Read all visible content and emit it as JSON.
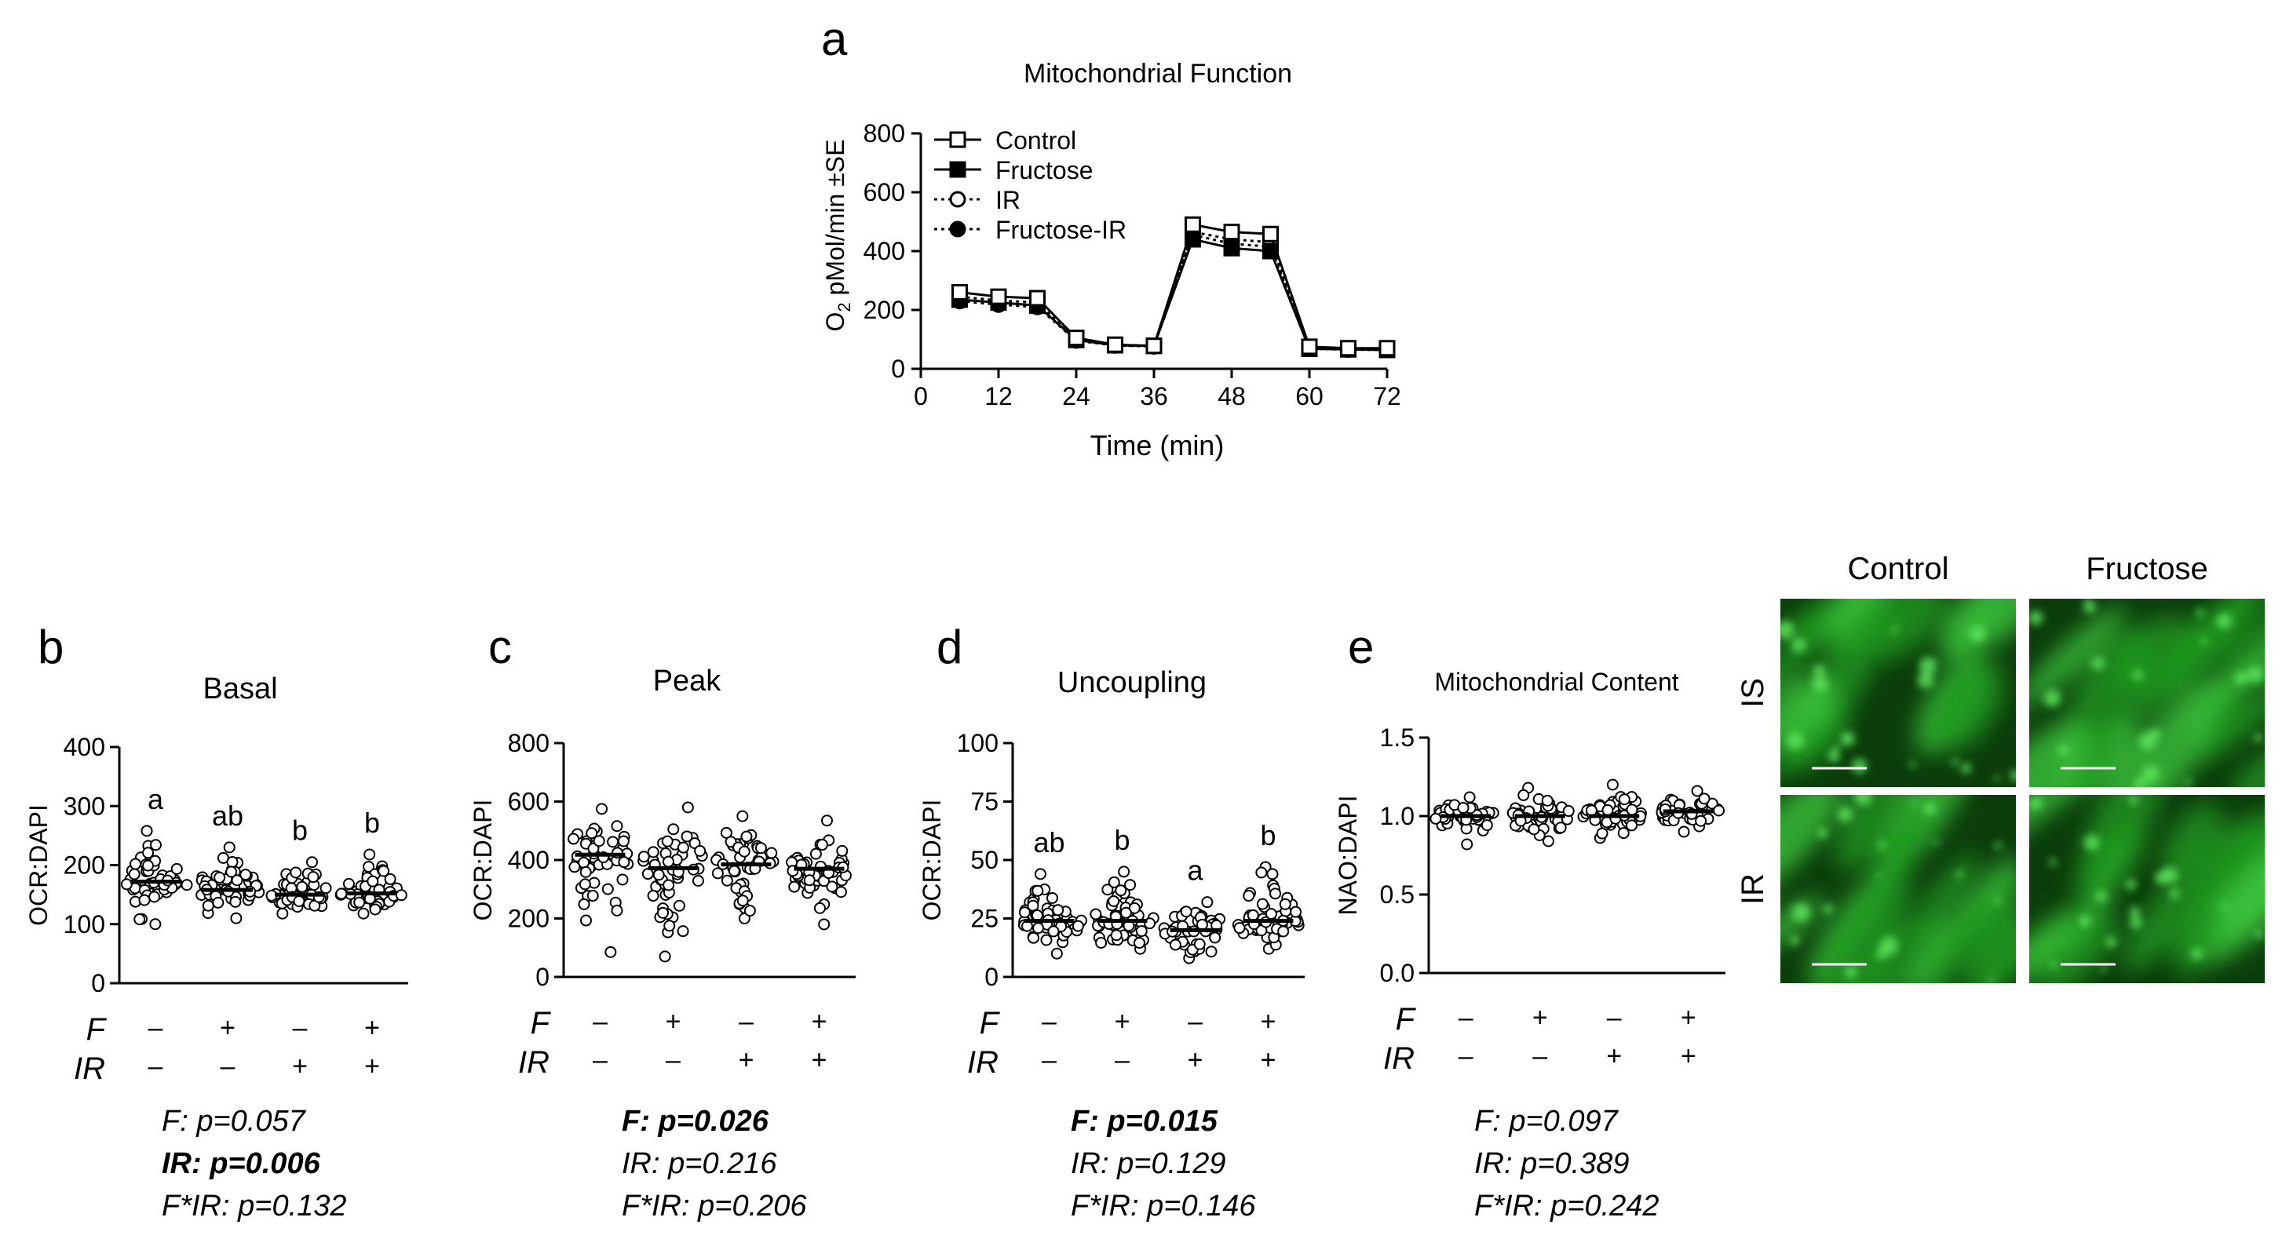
{
  "panel_a": {
    "letter": "a",
    "chart_data": {
      "type": "line",
      "title": "Mitochondrial Function",
      "xlabel": "Time (min)",
      "ylabel_main": "O",
      "ylabel_sub": "2",
      "ylabel_rest": " pMol/min ±SE",
      "x": [
        6,
        12,
        18,
        24,
        30,
        36,
        42,
        48,
        54,
        60,
        66,
        72
      ],
      "xlim": [
        0,
        72
      ],
      "ylim": [
        0,
        800
      ],
      "xticks": [
        "0",
        "12",
        "24",
        "36",
        "48",
        "60",
        "72"
      ],
      "yticks": [
        "0",
        "200",
        "400",
        "600",
        "800"
      ],
      "series": [
        {
          "name": "Control",
          "marker": "open-square",
          "line": "solid",
          "values": [
            260,
            245,
            240,
            105,
            82,
            78,
            490,
            465,
            458,
            75,
            70,
            70
          ]
        },
        {
          "name": "Fructose",
          "marker": "filled-square",
          "line": "solid",
          "values": [
            235,
            225,
            215,
            98,
            80,
            78,
            440,
            410,
            400,
            68,
            66,
            64
          ]
        },
        {
          "name": "IR",
          "marker": "open-circle",
          "line": "dotted",
          "values": [
            245,
            232,
            225,
            100,
            80,
            77,
            465,
            440,
            430,
            70,
            67,
            66
          ]
        },
        {
          "name": "Fructose-IR",
          "marker": "filled-circle",
          "line": "dotted",
          "values": [
            230,
            218,
            210,
            96,
            79,
            76,
            455,
            425,
            415,
            68,
            65,
            64
          ]
        }
      ]
    }
  },
  "dot_panels": [
    {
      "letter": "b",
      "title": "Basal",
      "ylabel": "OCR:DAPI",
      "yticks": [
        "0",
        "100",
        "200",
        "300",
        "400"
      ],
      "ylim": [
        0,
        400
      ],
      "chart_data": {
        "type": "scatter",
        "categories": [
          "F− IR−",
          "F+ IR−",
          "F− IR+",
          "F+ IR+"
        ],
        "medians": [
          172,
          158,
          150,
          152
        ],
        "spread": [
          [
            100,
            258
          ],
          [
            110,
            230
          ],
          [
            118,
            205
          ],
          [
            118,
            218
          ]
        ],
        "letters": [
          "a",
          "ab",
          "b",
          "b"
        ]
      },
      "factors": {
        "F_label": "F",
        "IR_label": "IR",
        "F": [
          "–",
          "+",
          "–",
          "+"
        ],
        "IR": [
          "–",
          "–",
          "+",
          "+"
        ]
      },
      "stats": [
        {
          "text": "F: p=0.057",
          "bold": false
        },
        {
          "text": "IR: p=0.006",
          "bold": true
        },
        {
          "text": "F*IR: p=0.132",
          "bold": false
        }
      ]
    },
    {
      "letter": "c",
      "title": "Peak",
      "ylabel": "OCR:DAPI",
      "yticks": [
        "0",
        "200",
        "400",
        "600",
        "800"
      ],
      "ylim": [
        0,
        800
      ],
      "chart_data": {
        "type": "scatter",
        "categories": [
          "F− IR−",
          "F+ IR−",
          "F− IR+",
          "F+ IR+"
        ],
        "medians": [
          418,
          372,
          385,
          370
        ],
        "spread": [
          [
            85,
            575
          ],
          [
            70,
            580
          ],
          [
            200,
            550
          ],
          [
            180,
            535
          ]
        ],
        "letters": [
          "",
          "",
          "",
          ""
        ]
      },
      "factors": {
        "F_label": "F",
        "IR_label": "IR",
        "F": [
          "–",
          "+",
          "–",
          "+"
        ],
        "IR": [
          "–",
          "–",
          "+",
          "+"
        ]
      },
      "stats": [
        {
          "text": "F: p=0.026",
          "bold": true
        },
        {
          "text": "IR: p=0.216",
          "bold": false
        },
        {
          "text": "F*IR: p=0.206",
          "bold": false
        }
      ]
    },
    {
      "letter": "d",
      "title": "Uncoupling",
      "ylabel": "OCR:DAPI",
      "yticks": [
        "0",
        "25",
        "50",
        "75",
        "100"
      ],
      "ylim": [
        0,
        100
      ],
      "chart_data": {
        "type": "scatter",
        "categories": [
          "F− IR−",
          "F+ IR−",
          "F− IR+",
          "F+ IR+"
        ],
        "medians": [
          24,
          24,
          20,
          24
        ],
        "spread": [
          [
            10,
            44
          ],
          [
            12,
            45
          ],
          [
            8,
            32
          ],
          [
            12,
            47
          ]
        ],
        "letters": [
          "ab",
          "b",
          "a",
          "b"
        ]
      },
      "factors": {
        "F_label": "F",
        "IR_label": "IR",
        "F": [
          "–",
          "+",
          "–",
          "+"
        ],
        "IR": [
          "–",
          "–",
          "+",
          "+"
        ]
      },
      "stats": [
        {
          "text": "F: p=0.015",
          "bold": true
        },
        {
          "text": "IR: p=0.129",
          "bold": false
        },
        {
          "text": "F*IR: p=0.146",
          "bold": false
        }
      ]
    },
    {
      "letter": "e",
      "title": "Mitochondrial Content",
      "ylabel": "NAO:DAPI",
      "yticks": [
        "0.0",
        "0.5",
        "1.0",
        "1.5"
      ],
      "ylim": [
        0,
        1.5
      ],
      "chart_data": {
        "type": "scatter",
        "categories": [
          "F− IR−",
          "F+ IR−",
          "F− IR+",
          "F+ IR+"
        ],
        "medians": [
          1.0,
          1.0,
          1.0,
          1.03
        ],
        "spread": [
          [
            0.82,
            1.12
          ],
          [
            0.84,
            1.18
          ],
          [
            0.86,
            1.2
          ],
          [
            0.9,
            1.16
          ]
        ],
        "letters": [
          "",
          "",
          "",
          ""
        ]
      },
      "factors": {
        "F_label": "F",
        "IR_label": "IR",
        "F": [
          "–",
          "+",
          "–",
          "+"
        ],
        "IR": [
          "–",
          "–",
          "+",
          "+"
        ]
      },
      "stats": [
        {
          "text": "F: p=0.097",
          "bold": false
        },
        {
          "text": "IR: p=0.389",
          "bold": false
        },
        {
          "text": "F*IR: p=0.242",
          "bold": false
        }
      ]
    }
  ],
  "micrographs": {
    "col_labels": [
      "Control",
      "Fructose"
    ],
    "row_labels": [
      "IS",
      "IR"
    ],
    "tile_color": "#1f9a1f"
  }
}
